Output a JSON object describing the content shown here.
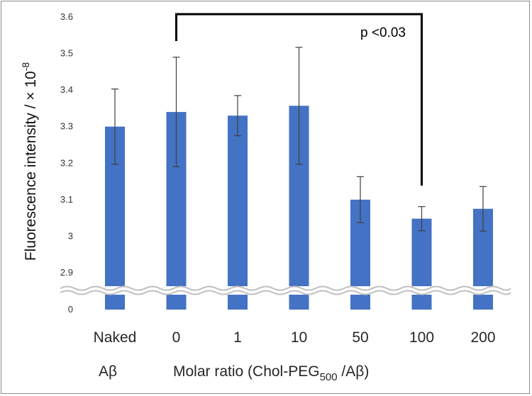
{
  "chart_data": {
    "type": "bar",
    "categories": [
      "Naked",
      "0",
      "1",
      "10",
      "50",
      "100",
      "200"
    ],
    "values": [
      3.3,
      3.34,
      3.33,
      3.357,
      3.1,
      3.048,
      3.075
    ],
    "errors": [
      0.103,
      0.15,
      0.055,
      0.16,
      0.063,
      0.033,
      0.061
    ],
    "ylabel_main": "Fluorescence intensity / × 10",
    "ylabel_exp": "-8",
    "y_ticks": [
      "3.6",
      "3.5",
      "3.4",
      "3.3",
      "3.2",
      "3.1",
      "3",
      "2.9",
      "0"
    ],
    "ylim": [
      2.9,
      3.6
    ],
    "axis_break": true,
    "bar_color": "#4472C4",
    "annotation": {
      "text": "p <0.03",
      "from_category": "0",
      "to_category": "100"
    },
    "group_label_left": "Aβ",
    "xlabel_main": "Molar ratio (Chol-PEG",
    "xlabel_sub": "500",
    "xlabel_tail": " /Aβ)",
    "grid": false
  }
}
